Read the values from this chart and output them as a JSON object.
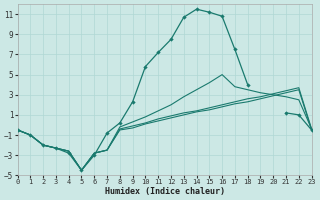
{
  "xlabel": "Humidex (Indice chaleur)",
  "background_color": "#cce8e5",
  "grid_color": "#b0d8d4",
  "line_color": "#1a7a6e",
  "xlim": [
    0,
    23
  ],
  "ylim": [
    -5,
    12
  ],
  "xticks": [
    0,
    1,
    2,
    3,
    4,
    5,
    6,
    7,
    8,
    9,
    10,
    11,
    12,
    13,
    14,
    15,
    16,
    17,
    18,
    19,
    20,
    21,
    22,
    23
  ],
  "yticks": [
    -5,
    -3,
    -1,
    1,
    3,
    5,
    7,
    9,
    11
  ],
  "series": [
    {
      "x": [
        0,
        1,
        2,
        3,
        4,
        5,
        6,
        7,
        8,
        9,
        10,
        11,
        12,
        13,
        14,
        15,
        16,
        17,
        18,
        19,
        20,
        21,
        22,
        23
      ],
      "y": [
        -0.5,
        -1.0,
        -2.0,
        -2.3,
        -2.6,
        -4.5,
        -2.8,
        -2.5,
        -0.5,
        -0.3,
        0.1,
        0.4,
        0.7,
        1.0,
        1.3,
        1.5,
        1.8,
        2.1,
        2.3,
        2.6,
        2.9,
        3.2,
        3.5,
        -0.5
      ],
      "marker": false
    },
    {
      "x": [
        0,
        1,
        2,
        3,
        4,
        5,
        6,
        7,
        8,
        9,
        10,
        11,
        12,
        13,
        14,
        15,
        16,
        17,
        18,
        19,
        20,
        21,
        22,
        23
      ],
      "y": [
        -0.5,
        -1.0,
        -2.0,
        -2.3,
        -2.6,
        -4.5,
        -2.8,
        -2.5,
        -0.4,
        -0.1,
        0.2,
        0.6,
        0.9,
        1.2,
        1.4,
        1.7,
        2.0,
        2.3,
        2.6,
        2.8,
        3.1,
        3.4,
        3.7,
        -0.4
      ],
      "marker": false
    },
    {
      "x": [
        0,
        1,
        2,
        3,
        4,
        5,
        6,
        7,
        8,
        9,
        10,
        11,
        12,
        13,
        14,
        15,
        16,
        17,
        18,
        19,
        20,
        21,
        22,
        23
      ],
      "y": [
        -0.5,
        -1.0,
        -2.0,
        -2.3,
        -2.6,
        -4.5,
        -2.8,
        -2.5,
        -0.2,
        0.3,
        0.8,
        1.4,
        2.0,
        2.8,
        3.5,
        4.2,
        5.0,
        3.8,
        3.5,
        3.2,
        3.0,
        2.8,
        2.5,
        -0.4
      ],
      "marker": false
    },
    {
      "x": [
        0,
        1,
        2,
        3,
        4,
        5,
        6,
        7,
        8,
        9,
        10,
        11,
        12,
        13,
        14,
        15,
        16,
        17,
        18,
        19,
        20,
        21,
        22,
        23
      ],
      "y": [
        -0.5,
        -1.0,
        -2.0,
        -2.3,
        -2.8,
        -4.5,
        -3.0,
        -0.8,
        0.2,
        2.3,
        5.8,
        7.2,
        8.5,
        10.7,
        11.5,
        11.2,
        10.8,
        7.5,
        4.0,
        null,
        null,
        1.2,
        1.0,
        -0.5
      ],
      "marker": true
    }
  ]
}
